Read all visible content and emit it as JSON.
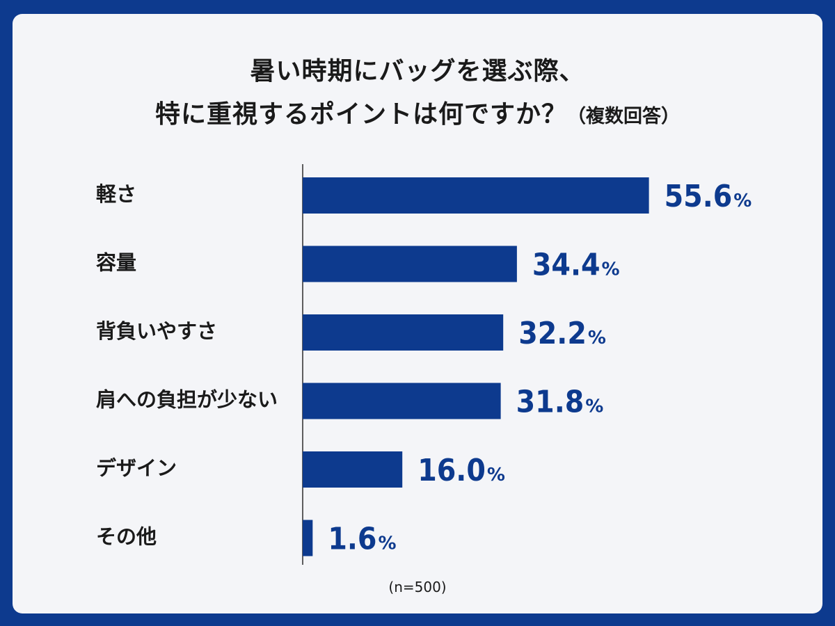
{
  "chart_data": {
    "type": "bar",
    "orientation": "horizontal",
    "title_line1": "暑い時期にバッグを選ぶ際、",
    "title_line2": "特に重視するポイントは何ですか？",
    "title_note": "（複数回答）",
    "categories": [
      "軽さ",
      "容量",
      "背負いやすさ",
      "肩への負担が少ない",
      "デザイン",
      "その他"
    ],
    "values": [
      55.6,
      34.4,
      32.2,
      31.8,
      16.0,
      1.6
    ],
    "value_labels": [
      "55.6",
      "34.4",
      "32.2",
      "31.8",
      "16.0",
      "1.6"
    ],
    "unit": "%",
    "sample_size": "(n=500)",
    "grid": false,
    "bar_color": "#0d3a8e",
    "background_color": "#0d3a8e",
    "card_color": "#f4f5f8"
  }
}
